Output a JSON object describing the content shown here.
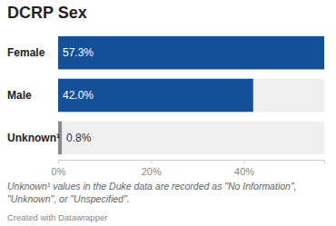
{
  "chart_data": {
    "type": "bar",
    "title": "DCRP Sex",
    "orientation": "horizontal",
    "categories": [
      "Female",
      "Male",
      "Unknown¹"
    ],
    "values": [
      57.3,
      42.0,
      0.8
    ],
    "value_labels": [
      "57.3%",
      "42.0%",
      "0.8%"
    ],
    "data_labels": true,
    "colors": [
      "#15509a",
      "#15509a",
      "#8a8a8a"
    ],
    "xlim": [
      0,
      57.3
    ],
    "xticks": [
      {
        "value": 0,
        "label": "0%"
      },
      {
        "value": 20,
        "label": "20%"
      },
      {
        "value": 40,
        "label": "40%"
      }
    ],
    "annotations": [
      "Unknown¹ values in the Duke data are recorded as \"No Information\",",
      "\"Unknown\", or \"Unspecified\"."
    ],
    "credit": "Created with Datawrapper"
  }
}
